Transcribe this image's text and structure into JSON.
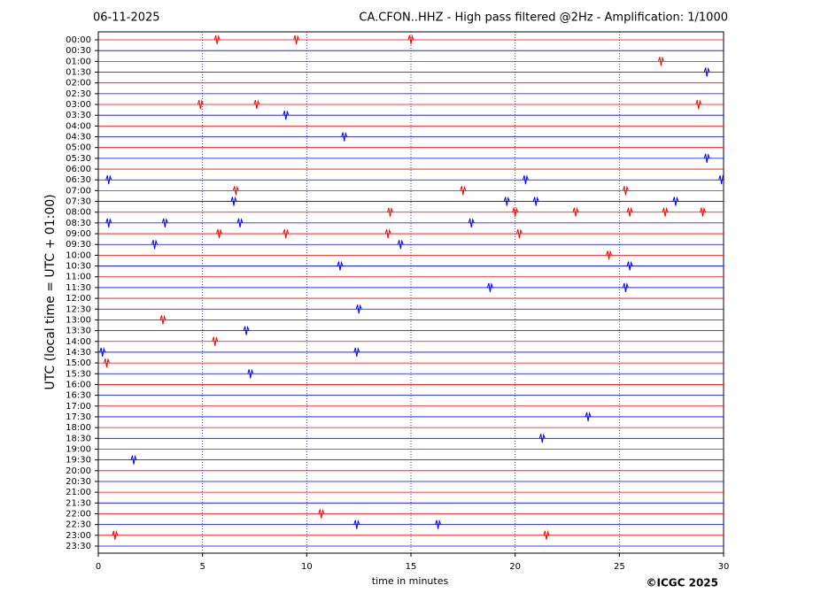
{
  "chart_data": {
    "type": "helicorder",
    "date": "06-11-2025",
    "title": "CA.CFON..HHZ - High pass filtered @2Hz - Amplification: 1/1000",
    "x_label": "time in minutes",
    "y_label": "UTC (local time = UTC + 01:00)",
    "credit": "©ICGC 2025",
    "categories": [
      "00:00",
      "00:30",
      "01:00",
      "01:30",
      "02:00",
      "02:30",
      "03:00",
      "03:30",
      "04:00",
      "04:30",
      "05:00",
      "05:30",
      "06:00",
      "06:30",
      "07:00",
      "07:30",
      "08:00",
      "08:30",
      "09:00",
      "09:30",
      "10:00",
      "10:30",
      "11:00",
      "11:30",
      "12:00",
      "12:30",
      "13:00",
      "13:30",
      "14:00",
      "14:30",
      "15:00",
      "15:30",
      "16:00",
      "16:30",
      "17:00",
      "17:30",
      "18:00",
      "18:30",
      "19:00",
      "19:30",
      "20:00",
      "20:30",
      "21:00",
      "21:30",
      "22:00",
      "22:30",
      "23:00",
      "23:30"
    ],
    "trace_colors": [
      "#ff0000",
      "#0000ff"
    ],
    "events": [
      [
        5.7,
        9.5,
        15
      ],
      [],
      [
        27
      ],
      [
        29.2
      ],
      [],
      [],
      [
        4.9,
        7.6,
        28.8
      ],
      [
        9
      ],
      [],
      [
        11.8
      ],
      [],
      [
        29.2
      ],
      [],
      [
        0.5,
        20.5,
        29.9
      ],
      [
        6.6,
        17.5,
        25.3
      ],
      [
        6.5,
        19.6,
        21,
        27.7
      ],
      [
        14,
        20,
        22.9,
        25.5,
        27.2,
        29
      ],
      [
        0.5,
        3.2,
        6.8,
        17.9
      ],
      [
        5.8,
        9,
        13.9,
        20.2
      ],
      [
        2.7,
        14.5
      ],
      [
        24.5
      ],
      [
        11.6,
        25.5
      ],
      [],
      [
        18.8,
        25.3
      ],
      [],
      [
        12.5
      ],
      [
        3.1
      ],
      [
        7.1
      ],
      [
        5.6
      ],
      [
        0.2,
        12.4
      ],
      [
        0.4
      ],
      [
        7.3
      ],
      [],
      [],
      [],
      [
        23.5
      ],
      [],
      [
        21.3
      ],
      [],
      [
        1.7
      ],
      [],
      [],
      [],
      [],
      [
        10.7
      ],
      [
        12.4,
        16.3
      ],
      [
        0.8,
        21.5
      ],
      []
    ],
    "xlim": [
      0,
      30
    ],
    "xticks": [
      0,
      5,
      10,
      15,
      20,
      25,
      30
    ],
    "grid": true
  }
}
